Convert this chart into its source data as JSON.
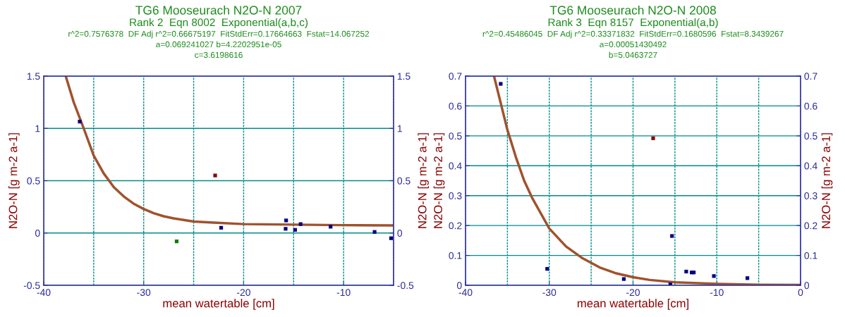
{
  "chart_data": [
    {
      "type": "scatter",
      "title": "TG6 Mooseurach N2O-N 2007",
      "subtitle": "Rank 2  Eqn 8002  Exponential(a,b,c)",
      "annotations": [
        "r^2=0.7576378  DF Adj r^2=0.66675197  FitStdErr=0.17664663  Fstat=14.067252",
        "a=0.069241027 b=4.2202951e-05",
        "c=3.6198616"
      ],
      "xlabel": "mean watertable [cm]",
      "ylabel": "N2O-N [g m-2 a-1]",
      "y2label": "N2O-N [g m-2 a-1]",
      "xlim": [
        -40,
        -5
      ],
      "xticks": [
        -40,
        -30,
        -20,
        -10
      ],
      "ylim": [
        -0.5,
        1.5
      ],
      "yticks": [
        -0.5,
        0,
        0.5,
        1,
        1.5
      ],
      "y2lim": [
        -0.5,
        1.5
      ],
      "y2ticks": [
        -0.5,
        0,
        0.5,
        1,
        1.5
      ],
      "grid": true,
      "series": [
        {
          "marker": "square",
          "x": [
            -36.4,
            -22.85,
            -26.7,
            -22.25,
            -15.75,
            -15.8,
            -14.85,
            -14.3,
            -11.3,
            -6.9,
            -5.25
          ],
          "values": [
            1.065,
            0.55,
            -0.08,
            0.05,
            0.12,
            0.04,
            0.03,
            0.085,
            0.06,
            0.01,
            -0.05
          ],
          "colors": [
            "#000080",
            "#8b0000",
            "#008000",
            "#000080",
            "#000080",
            "#000080",
            "#000080",
            "#000080",
            "#000080",
            "#000080",
            "#000080"
          ]
        },
        {
          "type": "line",
          "color": "#a0522d",
          "x": [
            -37.8,
            -37,
            -36,
            -35,
            -34,
            -33,
            -32,
            -31,
            -30,
            -29,
            -28,
            -27,
            -26,
            -25,
            -23,
            -20,
            -15,
            -10,
            -5
          ],
          "values": [
            1.5,
            1.25,
            1.0,
            0.74,
            0.57,
            0.44,
            0.35,
            0.28,
            0.23,
            0.19,
            0.16,
            0.14,
            0.125,
            0.11,
            0.1,
            0.085,
            0.08,
            0.075,
            0.072
          ]
        }
      ]
    },
    {
      "type": "scatter",
      "title": "TG6 Mooseurach N2O-N 2008",
      "subtitle": "Rank 3  Eqn 8157  Exponential(a,b)",
      "annotations": [
        "r^2=0.45486045  DF Adj r^2=0.33371832  FitStdErr=0.1680596  Fstat=8.3439267",
        "a=0.00051430492",
        "b=5.0463727"
      ],
      "xlabel": "mean watertable [cm]",
      "ylabel": "N2O-N [g m-2 a-1]",
      "y2label": "N2O-N [g m-2 a-1]",
      "xlim": [
        -40,
        0
      ],
      "xticks": [
        -40,
        -30,
        -20,
        -10,
        0
      ],
      "ylim": [
        0,
        0.7
      ],
      "yticks": [
        0,
        0.1,
        0.2,
        0.3,
        0.4,
        0.5,
        0.6,
        0.7
      ],
      "y2lim": [
        0,
        0.7
      ],
      "y2ticks": [
        0,
        0.1,
        0.2,
        0.3,
        0.4,
        0.5,
        0.6,
        0.7
      ],
      "grid": true,
      "series": [
        {
          "marker": "square",
          "x": [
            -35.8,
            -30.25,
            -21.1,
            -17.6,
            -15.55,
            -15.35,
            -13.65,
            -13.0,
            -12.75,
            -10.35,
            -6.35
          ],
          "values": [
            0.674,
            0.055,
            0.021,
            0.492,
            0.003,
            0.165,
            0.046,
            0.043,
            0.043,
            0.031,
            0.024
          ],
          "colors": [
            "#000080",
            "#000080",
            "#000080",
            "#8b0000",
            "#000080",
            "#000080",
            "#000080",
            "#000080",
            "#000080",
            "#000080",
            "#000080"
          ]
        },
        {
          "type": "line",
          "color": "#a0522d",
          "x": [
            -36.6,
            -35,
            -34,
            -33,
            -32,
            -31,
            -30,
            -28,
            -26,
            -24,
            -22,
            -20,
            -18,
            -15,
            -10,
            -5,
            0
          ],
          "values": [
            0.7,
            0.52,
            0.43,
            0.35,
            0.29,
            0.24,
            0.19,
            0.13,
            0.09,
            0.06,
            0.04,
            0.027,
            0.018,
            0.01,
            0.005,
            0.002,
            0.001
          ]
        }
      ]
    }
  ]
}
